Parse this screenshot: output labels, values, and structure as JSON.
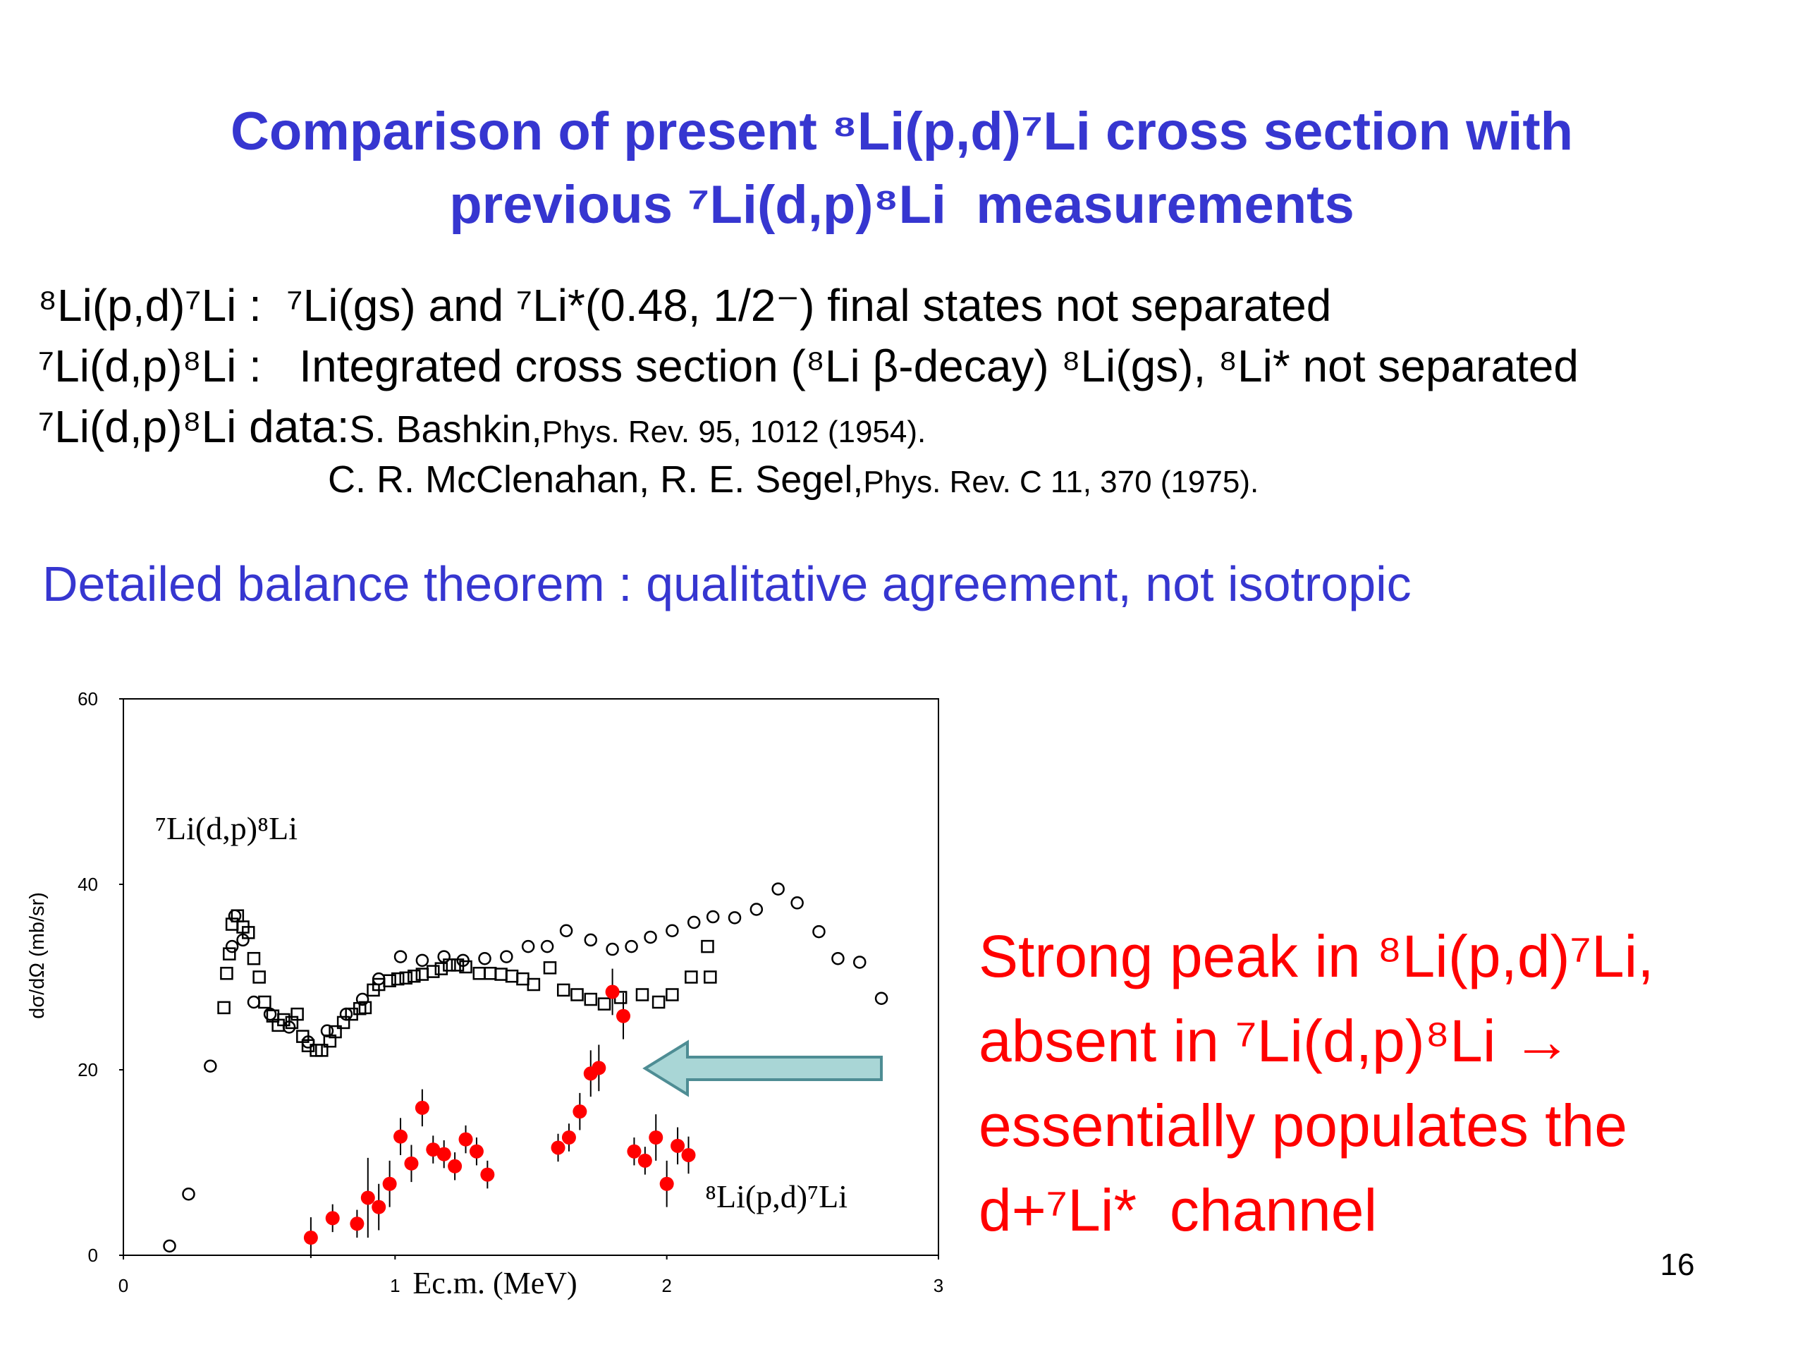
{
  "title": [
    "Comparison of present ⁸Li(p,d)⁷Li cross section with",
    "previous ⁷Li(d,p)⁸Li  measurements"
  ],
  "notes": [
    "⁸Li(p,d)⁷Li :  ⁷Li(gs) and ⁷Li*(0.48, 1/2⁻) final states not separated",
    "⁷Li(d,p)⁸Li :   Integrated cross section (⁸Li β-decay) ⁸Li(gs), ⁸Li* not separated"
  ],
  "data_label": "⁷Li(d,p)⁸Li data:",
  "references": [
    {
      "authors": "S. Bashkin,",
      "journal": "Phys. Rev. 95, 1012 (1954)."
    },
    {
      "authors": "C. R. McClenahan, R. E. Segel,",
      "journal": "Phys. Rev. C 11, 370 (1975)."
    }
  ],
  "subtitle": "Detailed balance theorem : qualitative agreement, not isotropic",
  "conclusion": [
    "Strong peak in ⁸Li(p,d)⁷Li,",
    "absent in ⁷Li(d,p)⁸Li →",
    "essentially populates the",
    "d+⁷Li*  channel"
  ],
  "page_number": "16",
  "chart_data": {
    "type": "scatter",
    "x_label": "Ec.m. (MeV)",
    "y_label": "dσ/dΩ (mb/sr)",
    "xlim": [
      0,
      3
    ],
    "xticks": [
      0,
      1,
      2,
      3
    ],
    "ylim": [
      0,
      60
    ],
    "yticks": [
      0,
      20,
      40,
      60
    ],
    "grid": false,
    "annotations": [
      "⁷Li(d,p)⁸Li",
      "⁸Li(p,d)⁷Li"
    ],
    "series": [
      {
        "marker": "circle",
        "filled": false,
        "color": "#000000",
        "x": [
          0.17,
          0.24,
          0.32,
          0.4,
          0.41,
          0.44,
          0.48,
          0.54,
          0.61,
          0.68,
          0.75,
          0.82,
          0.88,
          0.94,
          1.02,
          1.1,
          1.18,
          1.25,
          1.33,
          1.41,
          1.49,
          1.56,
          1.63,
          1.72,
          1.8,
          1.87,
          1.94,
          2.02,
          2.1,
          2.17,
          2.25,
          2.33,
          2.41,
          2.48,
          2.56,
          2.63,
          2.71,
          2.79
        ],
        "values": [
          1.0,
          6.6,
          20.4,
          33.3,
          36.6,
          34,
          27.3,
          26,
          24.6,
          23,
          24.2,
          26,
          27.6,
          29.8,
          32.2,
          31.8,
          32.2,
          31.8,
          32,
          32.2,
          33.3,
          33.3,
          35,
          34,
          33,
          33.3,
          34.3,
          35,
          35.9,
          36.5,
          36.4,
          37.3,
          39.5,
          38,
          34.9,
          32,
          31.6,
          27.7
        ]
      },
      {
        "marker": "square",
        "filled": false,
        "color": "#000000",
        "x": [
          0.37,
          0.38,
          0.39,
          0.4,
          0.42,
          0.44,
          0.46,
          0.48,
          0.5,
          0.52,
          0.55,
          0.57,
          0.59,
          0.62,
          0.64,
          0.66,
          0.68,
          0.71,
          0.73,
          0.76,
          0.78,
          0.81,
          0.84,
          0.87,
          0.89,
          0.92,
          0.94,
          0.98,
          1.01,
          1.04,
          1.07,
          1.1,
          1.14,
          1.17,
          1.2,
          1.23,
          1.26,
          1.31,
          1.35,
          1.39,
          1.43,
          1.47,
          1.51,
          1.57,
          1.62,
          1.67,
          1.72,
          1.77,
          1.83,
          1.91,
          1.97,
          2.02,
          2.09,
          2.16,
          2.15
        ],
        "values": [
          26.7,
          30.4,
          32.5,
          35.7,
          36.6,
          35.4,
          34.8,
          32,
          30,
          27.3,
          25.8,
          24.8,
          25.4,
          25.1,
          26,
          23.6,
          22.6,
          22.1,
          22.1,
          23.1,
          24.1,
          25.1,
          26,
          26.6,
          26.7,
          28.6,
          29.2,
          29.6,
          29.8,
          29.9,
          30.1,
          30.3,
          30.6,
          30.9,
          31.3,
          31.3,
          31.1,
          30.4,
          30.4,
          30.3,
          30.1,
          29.8,
          29.2,
          31,
          28.6,
          28.1,
          27.6,
          27.1,
          27.8,
          28.1,
          27.3,
          28.1,
          30,
          30,
          33.3
        ]
      },
      {
        "marker": "circle",
        "filled": true,
        "color": "#ff0000",
        "x": [
          0.69,
          0.77,
          0.86,
          0.9,
          0.94,
          0.98,
          1.02,
          1.06,
          1.1,
          1.14,
          1.18,
          1.22,
          1.26,
          1.3,
          1.34,
          1.6,
          1.64,
          1.68,
          1.72,
          1.75,
          1.8,
          1.84,
          1.88,
          1.92,
          1.96,
          2.0,
          2.04,
          2.08
        ],
        "values": [
          1.9,
          4.0,
          3.4,
          6.2,
          5.2,
          7.7,
          12.8,
          9.9,
          15.9,
          11.4,
          10.9,
          9.6,
          12.5,
          11.2,
          8.7,
          11.6,
          12.7,
          15.5,
          19.6,
          20.2,
          28.4,
          25.8,
          11.2,
          10.2,
          12.7,
          7.7,
          11.8,
          10.8
        ],
        "errors": [
          2.2,
          1.5,
          1.5,
          4.3,
          2.5,
          2.5,
          2,
          2,
          2,
          1.5,
          1.5,
          1.5,
          1.5,
          1.5,
          1.5,
          1.5,
          1.5,
          2,
          2.5,
          2.5,
          2.5,
          2.5,
          1.5,
          1.5,
          2.5,
          2.5,
          2,
          2
        ]
      }
    ]
  }
}
